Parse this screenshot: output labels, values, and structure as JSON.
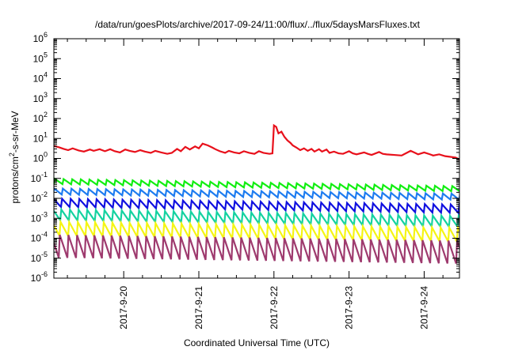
{
  "chart_data": {
    "type": "line",
    "title": "/data/run/goesPlots/archive/2017-09-24/11:00/flux/../flux/5daysMarsFluxes.txt",
    "xlabel": "Coordinated Universal Time (UTC)",
    "ylabel": "protons/cm²-s-sr-MeV",
    "ylabel_parts": {
      "pre": "protons/cm",
      "sup": "2",
      "post": "-s-sr-MeV"
    },
    "yscale": "log",
    "ylim_exp": [
      -6,
      6
    ],
    "y_ticks": [
      {
        "base": "10",
        "exp": "-6"
      },
      {
        "base": "10",
        "exp": "-5"
      },
      {
        "base": "10",
        "exp": "-4"
      },
      {
        "base": "10",
        "exp": "-3"
      },
      {
        "base": "10",
        "exp": "-2"
      },
      {
        "base": "10",
        "exp": "-1"
      },
      {
        "base": "10",
        "exp": "0"
      },
      {
        "base": "10",
        "exp": "1"
      },
      {
        "base": "10",
        "exp": "2"
      },
      {
        "base": "10",
        "exp": "3"
      },
      {
        "base": "10",
        "exp": "4"
      },
      {
        "base": "10",
        "exp": "5"
      },
      {
        "base": "10",
        "exp": "6"
      }
    ],
    "x_range_days": [
      -0.93,
      2.47
    ],
    "x_ticks": [
      {
        "label": "2017-9-20",
        "day": -2
      },
      {
        "label": "2017-9-21",
        "day": -1
      },
      {
        "label": "2017-9-22",
        "day": 0
      },
      {
        "label": "2017-9-23",
        "day": 1
      },
      {
        "label": "2017-9-24",
        "day": 2
      }
    ],
    "grid": false,
    "series": [
      {
        "color": "#e8101b",
        "points": [
          [
            -2.93,
            4.2
          ],
          [
            -2.86,
            3.6
          ],
          [
            -2.8,
            3.0
          ],
          [
            -2.74,
            2.6
          ],
          [
            -2.68,
            3.2
          ],
          [
            -2.6,
            2.5
          ],
          [
            -2.53,
            2.2
          ],
          [
            -2.45,
            2.8
          ],
          [
            -2.4,
            2.4
          ],
          [
            -2.32,
            2.9
          ],
          [
            -2.25,
            2.3
          ],
          [
            -2.18,
            2.9
          ],
          [
            -2.12,
            2.3
          ],
          [
            -2.05,
            2.0
          ],
          [
            -1.98,
            2.8
          ],
          [
            -1.92,
            2.4
          ],
          [
            -1.85,
            2.1
          ],
          [
            -1.78,
            2.6
          ],
          [
            -1.72,
            2.2
          ],
          [
            -1.64,
            1.9
          ],
          [
            -1.58,
            2.4
          ],
          [
            -1.5,
            2.0
          ],
          [
            -1.42,
            1.7
          ],
          [
            -1.36,
            1.9
          ],
          [
            -1.29,
            3.0
          ],
          [
            -1.24,
            2.3
          ],
          [
            -1.18,
            3.8
          ],
          [
            -1.12,
            2.8
          ],
          [
            -1.05,
            4.0
          ],
          [
            -1.0,
            3.2
          ],
          [
            -0.95,
            5.5
          ],
          [
            -0.88,
            4.5
          ],
          [
            -0.82,
            3.5
          ],
          [
            -0.78,
            2.9
          ],
          [
            -0.72,
            2.3
          ],
          [
            -0.65,
            1.9
          ],
          [
            -0.6,
            2.4
          ],
          [
            -0.53,
            2.0
          ],
          [
            -0.46,
            1.8
          ],
          [
            -0.4,
            2.3
          ],
          [
            -0.33,
            1.9
          ],
          [
            -0.26,
            1.7
          ],
          [
            -0.2,
            2.3
          ],
          [
            -0.14,
            1.9
          ],
          [
            -0.06,
            1.7
          ],
          [
            -0.02,
            1.8
          ],
          [
            0.0,
            45
          ],
          [
            0.03,
            38
          ],
          [
            0.06,
            18
          ],
          [
            0.1,
            22
          ],
          [
            0.14,
            12
          ],
          [
            0.18,
            8
          ],
          [
            0.22,
            6
          ],
          [
            0.25,
            4.5
          ],
          [
            0.3,
            3.5
          ],
          [
            0.35,
            2.6
          ],
          [
            0.4,
            3.2
          ],
          [
            0.45,
            2.4
          ],
          [
            0.5,
            3.0
          ],
          [
            0.54,
            2.2
          ],
          [
            0.6,
            2.9
          ],
          [
            0.64,
            2.2
          ],
          [
            0.7,
            2.8
          ],
          [
            0.74,
            1.9
          ],
          [
            0.8,
            2.2
          ],
          [
            0.86,
            1.8
          ],
          [
            0.92,
            1.7
          ],
          [
            1.0,
            2.3
          ],
          [
            1.05,
            1.8
          ],
          [
            1.1,
            1.6
          ],
          [
            1.2,
            2.0
          ],
          [
            1.25,
            1.7
          ],
          [
            1.3,
            1.5
          ],
          [
            1.4,
            2.1
          ],
          [
            1.45,
            1.7
          ],
          [
            1.5,
            1.6
          ],
          [
            1.6,
            1.5
          ],
          [
            1.7,
            1.4
          ],
          [
            1.82,
            2.4
          ],
          [
            1.88,
            1.9
          ],
          [
            1.92,
            1.6
          ],
          [
            2.0,
            2.0
          ],
          [
            2.08,
            1.6
          ],
          [
            2.12,
            1.4
          ],
          [
            2.2,
            1.6
          ],
          [
            2.28,
            1.3
          ],
          [
            2.35,
            1.2
          ],
          [
            2.42,
            1.1
          ],
          [
            2.47,
            0.9
          ]
        ]
      },
      {
        "color": "#11ee11",
        "base": 0.05,
        "amp": 1.8,
        "period": 0.115,
        "phase": 0.0,
        "note_points": [
          [
            -0.93,
            0.07
          ],
          [
            2.47,
            0.03
          ]
        ]
      },
      {
        "color": "#1e7cf0",
        "base": 0.017,
        "amp": 2.0,
        "period": 0.115,
        "phase": 0.01,
        "note_points": [
          [
            -0.93,
            0.022
          ],
          [
            2.47,
            0.012
          ]
        ]
      },
      {
        "color": "#1010e0",
        "base": 0.0045,
        "amp": 2.6,
        "period": 0.115,
        "phase": 0.02,
        "note_points": [
          [
            -0.93,
            0.006
          ],
          [
            2.47,
            0.003
          ]
        ]
      },
      {
        "color": "#14d2a0",
        "base": 0.0011,
        "amp": 3.5,
        "period": 0.115,
        "phase": 0.03,
        "note_points": [
          [
            -0.93,
            0.0015
          ],
          [
            2.47,
            0.0007
          ]
        ]
      },
      {
        "color": "#f5f514",
        "base": 0.00025,
        "amp": 5.0,
        "period": 0.115,
        "phase": 0.04,
        "note_points": [
          [
            -0.93,
            0.0003
          ],
          [
            2.47,
            0.00015
          ]
        ]
      },
      {
        "color": "#9e3a6e",
        "base": 3e-05,
        "amp": 14.0,
        "period": 0.115,
        "phase": 0.05,
        "note_points": [
          [
            -0.93,
            4e-05
          ],
          [
            2.47,
            2e-05
          ]
        ]
      }
    ]
  }
}
